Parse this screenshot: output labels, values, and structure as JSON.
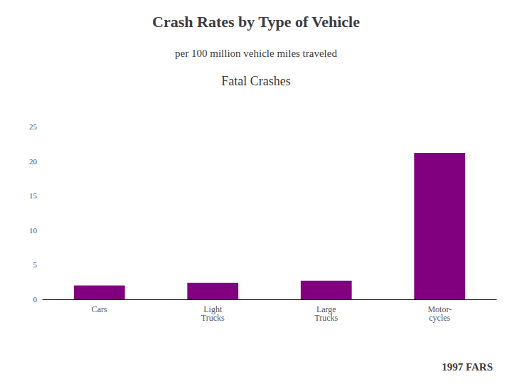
{
  "chart_data": {
    "type": "bar",
    "title": "Crash Rates by Type of Vehicle",
    "subtitle": "per 100 million vehicle miles traveled",
    "annotations": [
      "Fatal Crashes",
      "1997 FARS"
    ],
    "categories": [
      "Cars",
      "Light\nTrucks",
      "Large\nTrucks",
      "Motor-\ncycles"
    ],
    "values": [
      2.0,
      2.4,
      2.7,
      21.2
    ],
    "color": "#800080",
    "ylim": [
      0,
      25
    ],
    "yticks": [
      0,
      5,
      10,
      15,
      20,
      25
    ],
    "grid": false
  }
}
